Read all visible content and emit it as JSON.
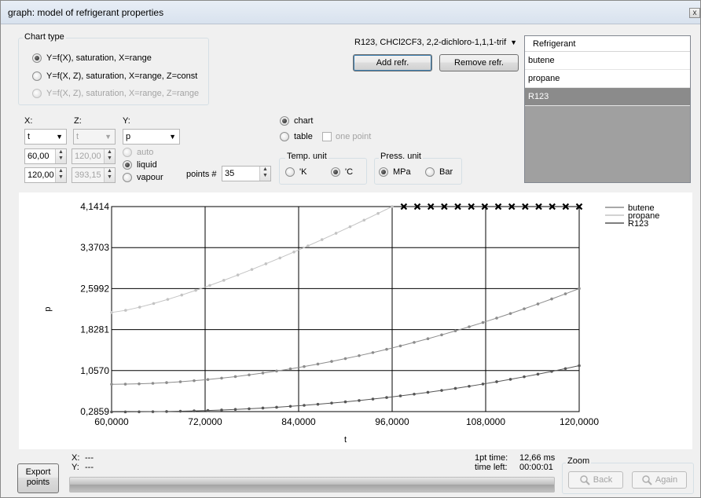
{
  "window": {
    "title": "graph: model of refrigerant properties",
    "close_glyph": "x"
  },
  "chart_type": {
    "title": "Chart type",
    "options": [
      {
        "label": "Y=f(X), saturation, X=range",
        "selected": true,
        "enabled": true
      },
      {
        "label": "Y=f(X, Z), saturation, X=range, Z=const",
        "selected": false,
        "enabled": true
      },
      {
        "label": "Y=f(X, Z), saturation, X=range, Z=range",
        "selected": false,
        "enabled": false
      }
    ]
  },
  "refrigerant_select": {
    "value": "R123, CHCl2CF3, 2,2-dichloro-1,1,1-trif"
  },
  "buttons": {
    "add": "Add refr.",
    "remove": "Remove refr.",
    "export": "Export points",
    "back": "Back",
    "again": "Again"
  },
  "refrigerants": {
    "header": "Refrigerant",
    "items": [
      "butene",
      "propane",
      "R123"
    ],
    "selected": "R123"
  },
  "axes_select": {
    "x_label": "X:",
    "z_label": "Z:",
    "y_label": "Y:",
    "x_value": "t",
    "z_value": "t",
    "y_value": "p",
    "x_from": "60,00",
    "x_to": "120,00",
    "z_from": "120,00",
    "z_to": "393,15"
  },
  "phase": {
    "auto": "auto",
    "liquid": "liquid",
    "vapour": "vapour",
    "selected": "liquid"
  },
  "points": {
    "label": "points #",
    "value": "35"
  },
  "output": {
    "chart": "chart",
    "table": "table",
    "one_point": "one point",
    "selected": "chart"
  },
  "temp_unit": {
    "title": "Temp. unit",
    "k": "'K",
    "c": "'C",
    "selected": "C"
  },
  "press_unit": {
    "title": "Press. unit",
    "mpa": "MPa",
    "bar": "Bar",
    "selected": "MPa"
  },
  "status": {
    "x_label": "X:",
    "x_value": "---",
    "y_label": "Y:",
    "y_value": "---",
    "pt_time_label": "1pt time:",
    "pt_time_value": "12,66 ms",
    "time_left_label": "time left:",
    "time_left_value": "00:00:01",
    "zoom_title": "Zoom"
  },
  "icons": {
    "back": "magnifier-icon",
    "again": "magnifier-icon",
    "close": "close-icon"
  },
  "chart_data": {
    "type": "line",
    "xlabel": "t",
    "ylabel": "p",
    "xlim": [
      60,
      120
    ],
    "ylim": [
      0.2859,
      4.1414
    ],
    "x_ticks": [
      "60,0000",
      "72,0000",
      "84,0000",
      "96,0000",
      "108,0000",
      "120,0000"
    ],
    "y_ticks": [
      "0,2859",
      "1,0570",
      "1,8281",
      "2,5992",
      "3,3703",
      "4,1414"
    ],
    "grid": true,
    "legend_position": "top-right",
    "series": [
      {
        "name": "butene",
        "color": "#8c8c8c",
        "x_start": 60,
        "x_end": 120,
        "n": 35,
        "p0": 0.8,
        "p1": 2.6,
        "curve": 1.9
      },
      {
        "name": "propane",
        "color": "#c3c3c3",
        "x_start": 60,
        "x_end": 96,
        "n": 21,
        "p0": 2.15,
        "p1": 4.1414,
        "curve": 1.3,
        "clipped": {
          "x_start": 97.5,
          "x_end": 120,
          "count": 14,
          "value": 4.1414
        }
      },
      {
        "name": "R123",
        "color": "#555555",
        "x_start": 60,
        "x_end": 120,
        "n": 35,
        "p0": 0.28,
        "p1": 1.15,
        "curve": 2.2
      }
    ]
  }
}
